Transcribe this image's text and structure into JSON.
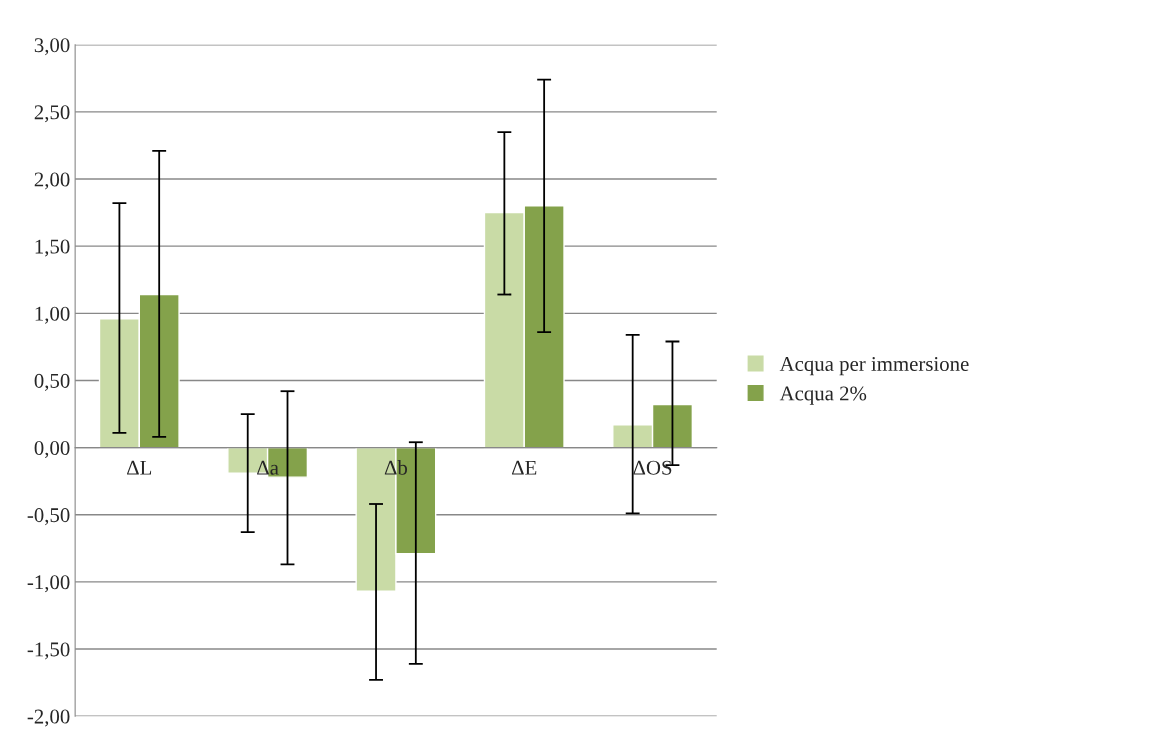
{
  "chart_data": {
    "type": "bar",
    "categories": [
      "ΔL",
      "Δa",
      "Δb",
      "ΔE",
      "ΔOS"
    ],
    "series": [
      {
        "name": "Acqua per immersione",
        "color": "#c9dba6",
        "values": [
          0.96,
          -0.19,
          -1.07,
          1.75,
          0.17
        ],
        "errors": [
          [
            0.11,
            1.82
          ],
          [
            -0.63,
            0.25
          ],
          [
            -1.73,
            -0.42
          ],
          [
            1.14,
            2.35
          ],
          [
            -0.49,
            0.84
          ]
        ]
      },
      {
        "name": "Acqua 2%",
        "color": "#84a24b",
        "values": [
          1.14,
          -0.22,
          -0.79,
          1.8,
          0.32
        ],
        "errors": [
          [
            0.08,
            2.21
          ],
          [
            -0.87,
            0.42
          ],
          [
            -1.61,
            0.04
          ],
          [
            0.86,
            2.74
          ],
          [
            -0.13,
            0.79
          ]
        ]
      }
    ],
    "ylim": [
      -2,
      3
    ],
    "yticks": [
      {
        "value": -2,
        "label": "-2,00"
      },
      {
        "value": -1.5,
        "label": "-1,50"
      },
      {
        "value": -1,
        "label": "-1,00"
      },
      {
        "value": -0.5,
        "label": "-0,50"
      },
      {
        "value": 0,
        "label": "0,00"
      },
      {
        "value": 0.5,
        "label": "0,50"
      },
      {
        "value": 1,
        "label": "1,00"
      },
      {
        "value": 1.5,
        "label": "1,50"
      },
      {
        "value": 2,
        "label": "2,00"
      },
      {
        "value": 2.5,
        "label": "2,50"
      },
      {
        "value": 3,
        "label": "3,00"
      }
    ],
    "grid": "y",
    "legend": "right"
  }
}
